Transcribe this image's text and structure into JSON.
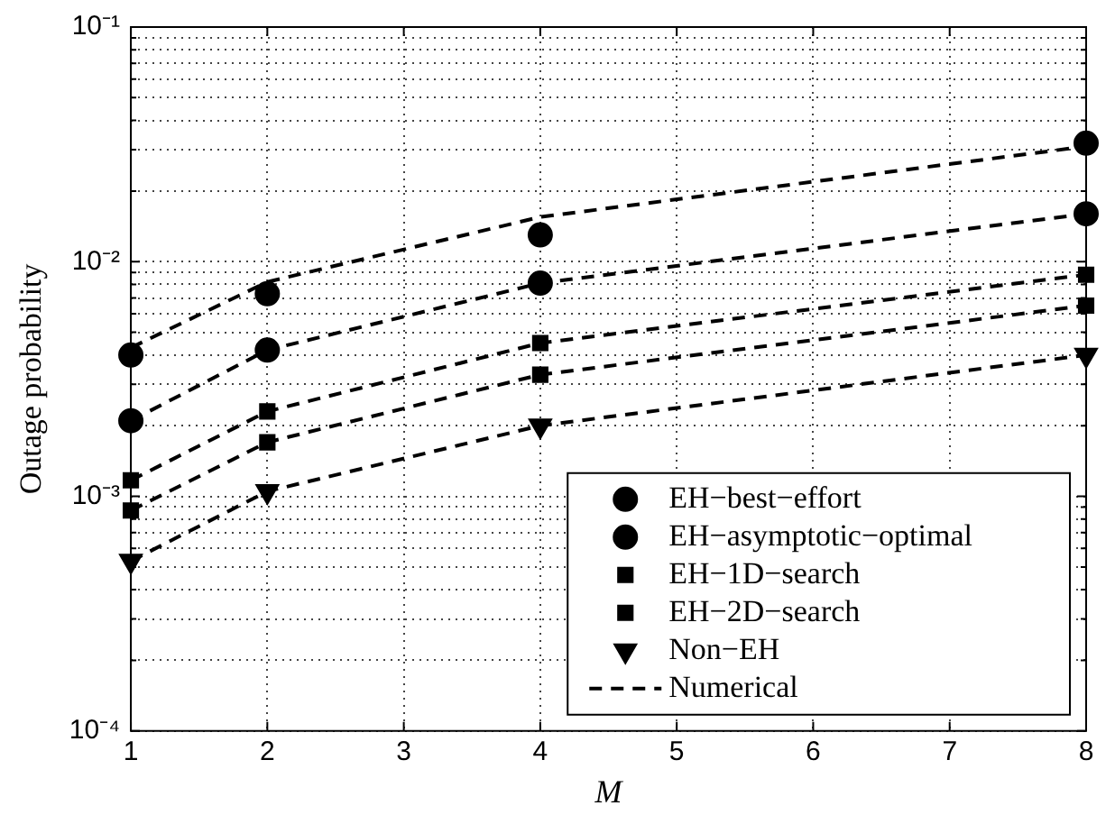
{
  "chart_data": {
    "type": "line",
    "xlabel": "M",
    "ylabel": "Outage probability",
    "log": "y",
    "grid": true,
    "legend": "bottom right",
    "xlim": [
      1,
      8
    ],
    "xticks": [
      1,
      2,
      3,
      4,
      5,
      6,
      7,
      8
    ],
    "ylim": [
      0.0001,
      0.1
    ],
    "yticks": [
      {
        "value": 0.0001,
        "label": "10⁻⁴"
      },
      {
        "value": 0.0002,
        "label": null
      },
      {
        "value": 0.0003,
        "label": null
      },
      {
        "value": 0.0004,
        "label": null
      },
      {
        "value": 0.0005,
        "label": null
      },
      {
        "value": 0.0006,
        "label": null
      },
      {
        "value": 0.0007,
        "label": null
      },
      {
        "value": 0.0008,
        "label": null
      },
      {
        "value": 0.0009,
        "label": null
      },
      {
        "value": 0.001,
        "label": "10⁻³"
      },
      {
        "value": 0.002,
        "label": null
      },
      {
        "value": 0.003,
        "label": null
      },
      {
        "value": 0.004,
        "label": null
      },
      {
        "value": 0.005,
        "label": null
      },
      {
        "value": 0.006,
        "label": null
      },
      {
        "value": 0.007,
        "label": null
      },
      {
        "value": 0.008,
        "label": null
      },
      {
        "value": 0.009,
        "label": null
      },
      {
        "value": 0.01,
        "label": "10⁻²"
      },
      {
        "value": 0.02,
        "label": null
      },
      {
        "value": 0.03,
        "label": null
      },
      {
        "value": 0.04,
        "label": null
      },
      {
        "value": 0.05,
        "label": null
      },
      {
        "value": 0.06,
        "label": null
      },
      {
        "value": 0.07,
        "label": null
      },
      {
        "value": 0.08,
        "label": null
      },
      {
        "value": 0.09,
        "label": null
      },
      {
        "value": 0.1,
        "label": "10⁻¹"
      }
    ],
    "x": [
      1,
      2,
      4,
      8
    ],
    "series": [
      {
        "name": "EH−best−effort",
        "type": "scatter",
        "marker": "circle",
        "color": "#000000",
        "values": [
          0.004,
          0.0073,
          0.013,
          0.032
        ]
      },
      {
        "name": "EH−asymptotic−optimal",
        "type": "scatter",
        "marker": "circle",
        "color": "#000000",
        "values": [
          0.0021,
          0.0042,
          0.0081,
          0.016
        ]
      },
      {
        "name": "EH−1D−search",
        "type": "scatter",
        "marker": "square",
        "color": "#000000",
        "values": [
          0.00117,
          0.0023,
          0.0045,
          0.0088
        ]
      },
      {
        "name": "EH−2D−search",
        "type": "scatter",
        "marker": "square",
        "color": "#000000",
        "values": [
          0.00087,
          0.0017,
          0.0033,
          0.0065
        ]
      },
      {
        "name": "Non−EH",
        "type": "scatter",
        "marker": "triangle",
        "color": "#000000",
        "values": [
          0.00053,
          0.00105,
          0.002,
          0.004
        ]
      },
      {
        "name": "Numerical",
        "line_style": "dashed",
        "marker": "none",
        "color": "#000000",
        "values": [
          0.0043,
          0.0082,
          0.0155,
          0.031
        ]
      },
      {
        "line_style": "dashed",
        "marker": "none",
        "color": "#000000",
        "values": [
          0.0021,
          0.0042,
          0.0081,
          0.016
        ]
      },
      {
        "line_style": "dashed",
        "marker": "none",
        "color": "#000000",
        "values": [
          0.00117,
          0.0023,
          0.0045,
          0.0088
        ]
      },
      {
        "line_style": "dashed",
        "marker": "none",
        "color": "#000000",
        "values": [
          0.00087,
          0.0017,
          0.0033,
          0.0065
        ]
      },
      {
        "line_style": "dashed",
        "marker": "none",
        "color": "#000000",
        "values": [
          0.00053,
          0.00105,
          0.002,
          0.004
        ]
      }
    ]
  }
}
